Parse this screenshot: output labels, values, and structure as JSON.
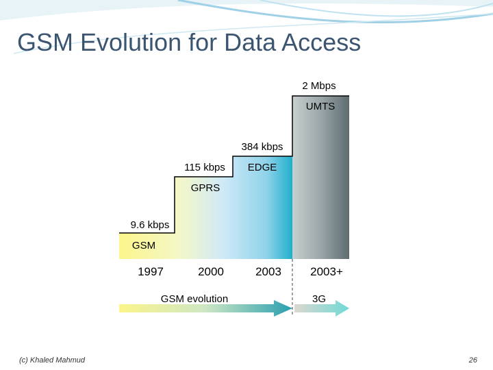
{
  "header": {
    "title": "GSM Evolution for Data Access"
  },
  "steps": [
    {
      "rate": "9.6 kbps",
      "tech": "GSM",
      "year": "1997"
    },
    {
      "rate": "115 kbps",
      "tech": "GPRS",
      "year": "2000"
    },
    {
      "rate": "384 kbps",
      "tech": "EDGE",
      "year": "2003"
    },
    {
      "rate": "2 Mbps",
      "tech": "UMTS",
      "year": "2003+"
    }
  ],
  "arrows": [
    {
      "label": "GSM evolution"
    },
    {
      "label": "3G"
    }
  ],
  "footer": {
    "author": "(c) Khaled Mahmud",
    "page": "26"
  }
}
